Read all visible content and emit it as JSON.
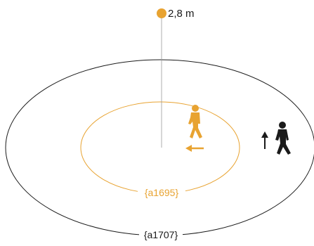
{
  "height_label": "2,8 m",
  "inner_zone_label": "{a1695}",
  "outer_zone_label": "{a1707}",
  "icons": {
    "sensor": "sensor-dot-icon",
    "person_inner": "walking-person-icon",
    "person_outer": "walking-person-icon",
    "arrow_inner": "arrow-left-icon",
    "arrow_outer": "arrow-up-icon"
  },
  "colors": {
    "accent": "#e8a331",
    "outline": "#1a1a1a",
    "pole": "#999999",
    "background": "#ffffff"
  }
}
